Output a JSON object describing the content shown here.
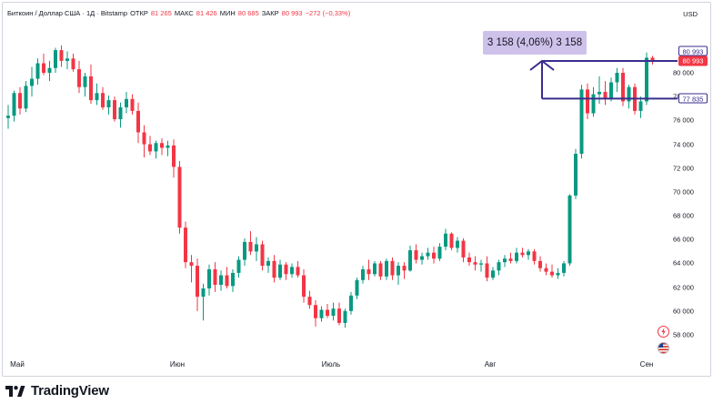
{
  "header": {
    "symbol": "Биткоин / Доллар США · 1Д · Bitstamp",
    "open_label": "ОТКР",
    "open_value": "81 265",
    "high_label": "МАКС",
    "high_value": "81 426",
    "low_label": "МИН",
    "low_value": "80 685",
    "close_label": "ЗАКР",
    "close_value": "80 993",
    "change": "−272 (−0,33%)"
  },
  "currency": "USD",
  "price_axis": [
    "80 000",
    "78 000",
    "76 000",
    "74 000",
    "72 000",
    "70 000",
    "68 000",
    "66 000",
    "64 000",
    "62 000",
    "60 000",
    "58 000"
  ],
  "tags": {
    "upper": "80 993",
    "current": "80 993",
    "lower": "77 835"
  },
  "x_labels": [
    "Май",
    "Июн",
    "Июль",
    "Авг",
    "Сен"
  ],
  "measure_label": "3 158 (4,06%) 3 158",
  "brand": "TradingView",
  "icons": [
    "flash-icon",
    "us-flag-icon",
    "tradingview-logo-icon"
  ],
  "colors": {
    "up": "#089981",
    "down": "#f23645",
    "measure": "#3a2d8f",
    "measure_fill": "#cfc2ea"
  },
  "chart_data": {
    "type": "candlestick",
    "title": "",
    "ylim": [
      57000,
      82500
    ],
    "y_ticks": [
      58000,
      60000,
      62000,
      64000,
      66000,
      68000,
      70000,
      72000,
      74000,
      76000,
      78000,
      80000
    ],
    "x_ticks": [
      "Май",
      "Июн",
      "Июль",
      "Авг",
      "Сен"
    ],
    "measure": {
      "from": 77835,
      "to": 80993,
      "delta": 3158,
      "percent": "4,06%"
    },
    "candles": [
      [
        76200,
        77300,
        75300,
        76400
      ],
      [
        76400,
        78500,
        75900,
        78300
      ],
      [
        78300,
        78800,
        76500,
        77000
      ],
      [
        77000,
        79300,
        76700,
        78900
      ],
      [
        78900,
        80500,
        78000,
        79500
      ],
      [
        79500,
        81200,
        79000,
        80800
      ],
      [
        80800,
        81600,
        79800,
        80000
      ],
      [
        80000,
        81000,
        79300,
        80400
      ],
      [
        80400,
        82100,
        80000,
        81900
      ],
      [
        81900,
        82300,
        80500,
        81000
      ],
      [
        81000,
        81800,
        80300,
        81200
      ],
      [
        81200,
        81600,
        80100,
        80300
      ],
      [
        80300,
        81000,
        78300,
        78800
      ],
      [
        78800,
        80000,
        78000,
        79700
      ],
      [
        79700,
        80700,
        77400,
        77700
      ],
      [
        77700,
        79100,
        77300,
        78300
      ],
      [
        78300,
        78800,
        76900,
        77100
      ],
      [
        77100,
        78100,
        76500,
        77700
      ],
      [
        77700,
        78000,
        75900,
        76100
      ],
      [
        76100,
        77500,
        75400,
        77100
      ],
      [
        77100,
        78400,
        76600,
        77800
      ],
      [
        77800,
        78200,
        76500,
        76800
      ],
      [
        76800,
        77500,
        74100,
        75000
      ],
      [
        75000,
        75600,
        72900,
        74000
      ],
      [
        74000,
        74700,
        73100,
        73400
      ],
      [
        73400,
        74300,
        72800,
        74100
      ],
      [
        74100,
        74500,
        73100,
        73700
      ],
      [
        73700,
        74300,
        73000,
        73900
      ],
      [
        73900,
        74400,
        71200,
        72100
      ],
      [
        72100,
        72600,
        66500,
        67000
      ],
      [
        67000,
        67500,
        63600,
        64100
      ],
      [
        64100,
        64700,
        62400,
        63800
      ],
      [
        63800,
        64400,
        60000,
        61200
      ],
      [
        61200,
        62300,
        59200,
        61900
      ],
      [
        61900,
        63900,
        61300,
        63500
      ],
      [
        63500,
        64100,
        61600,
        62200
      ],
      [
        62200,
        63400,
        61700,
        63000
      ],
      [
        63000,
        63700,
        61900,
        62100
      ],
      [
        62100,
        63500,
        61600,
        63200
      ],
      [
        63200,
        64600,
        62800,
        64300
      ],
      [
        64300,
        66100,
        63800,
        65800
      ],
      [
        65800,
        66700,
        64700,
        65000
      ],
      [
        65000,
        66200,
        64200,
        65600
      ],
      [
        65600,
        65900,
        63400,
        63800
      ],
      [
        63800,
        64500,
        63200,
        64200
      ],
      [
        64200,
        64700,
        62400,
        62800
      ],
      [
        62800,
        64300,
        62600,
        63900
      ],
      [
        63900,
        64100,
        62600,
        63100
      ],
      [
        63100,
        64000,
        62800,
        63700
      ],
      [
        63700,
        64200,
        62800,
        63000
      ],
      [
        63000,
        63500,
        60700,
        61200
      ],
      [
        61200,
        61700,
        60200,
        60500
      ],
      [
        60500,
        60900,
        58700,
        59400
      ],
      [
        59400,
        60400,
        59100,
        60100
      ],
      [
        60100,
        60600,
        59400,
        59600
      ],
      [
        59600,
        60700,
        59200,
        60200
      ],
      [
        60200,
        60700,
        58800,
        59000
      ],
      [
        59000,
        60200,
        58600,
        60000
      ],
      [
        60000,
        61600,
        59700,
        61300
      ],
      [
        61300,
        62800,
        61000,
        62600
      ],
      [
        62600,
        63800,
        62300,
        63500
      ],
      [
        63500,
        64300,
        62600,
        63100
      ],
      [
        63100,
        64200,
        62900,
        64000
      ],
      [
        64000,
        64200,
        62600,
        62900
      ],
      [
        62900,
        64400,
        62600,
        64200
      ],
      [
        64200,
        64500,
        62600,
        63000
      ],
      [
        63000,
        64100,
        62200,
        63800
      ],
      [
        63800,
        64100,
        62700,
        63400
      ],
      [
        63400,
        65500,
        63300,
        65100
      ],
      [
        65100,
        65600,
        64000,
        64300
      ],
      [
        64300,
        64900,
        63900,
        64600
      ],
      [
        64600,
        65300,
        64300,
        64900
      ],
      [
        64900,
        65400,
        64000,
        64400
      ],
      [
        64400,
        65700,
        64200,
        65400
      ],
      [
        65400,
        66900,
        65100,
        66500
      ],
      [
        66500,
        66600,
        65100,
        65300
      ],
      [
        65300,
        66200,
        64900,
        65900
      ],
      [
        65900,
        66100,
        64100,
        64500
      ],
      [
        64500,
        64900,
        63800,
        64100
      ],
      [
        64100,
        64600,
        63400,
        63900
      ],
      [
        63900,
        64300,
        63300,
        64000
      ],
      [
        64000,
        64600,
        62500,
        62800
      ],
      [
        62800,
        63700,
        62600,
        63400
      ],
      [
        63400,
        64300,
        63000,
        64100
      ],
      [
        64100,
        64700,
        63700,
        64400
      ],
      [
        64400,
        64900,
        64000,
        64200
      ],
      [
        64200,
        65300,
        64000,
        64900
      ],
      [
        64900,
        65300,
        64500,
        64700
      ],
      [
        64700,
        65200,
        64300,
        65000
      ],
      [
        65000,
        65200,
        63900,
        64200
      ],
      [
        64200,
        64600,
        63300,
        63600
      ],
      [
        63600,
        64000,
        63000,
        63300
      ],
      [
        63300,
        63900,
        62800,
        63000
      ],
      [
        63000,
        63600,
        62700,
        63200
      ],
      [
        63200,
        64200,
        62900,
        64000
      ],
      [
        64000,
        69800,
        63800,
        69700
      ],
      [
        69700,
        73600,
        69400,
        73200
      ],
      [
        73200,
        79000,
        72800,
        78600
      ],
      [
        78600,
        79100,
        76100,
        76600
      ],
      [
        76600,
        78800,
        76300,
        78200
      ],
      [
        78200,
        79700,
        77400,
        78400
      ],
      [
        78400,
        79300,
        77300,
        77900
      ],
      [
        77900,
        79600,
        77600,
        79200
      ],
      [
        79200,
        80400,
        78400,
        80000
      ],
      [
        80000,
        80400,
        77200,
        77600
      ],
      [
        77600,
        79000,
        77000,
        78800
      ],
      [
        78800,
        79100,
        76500,
        76800
      ],
      [
        76800,
        78000,
        76200,
        77600
      ],
      [
        77600,
        81700,
        77300,
        81265
      ],
      [
        81265,
        81426,
        80685,
        80993
      ]
    ]
  }
}
